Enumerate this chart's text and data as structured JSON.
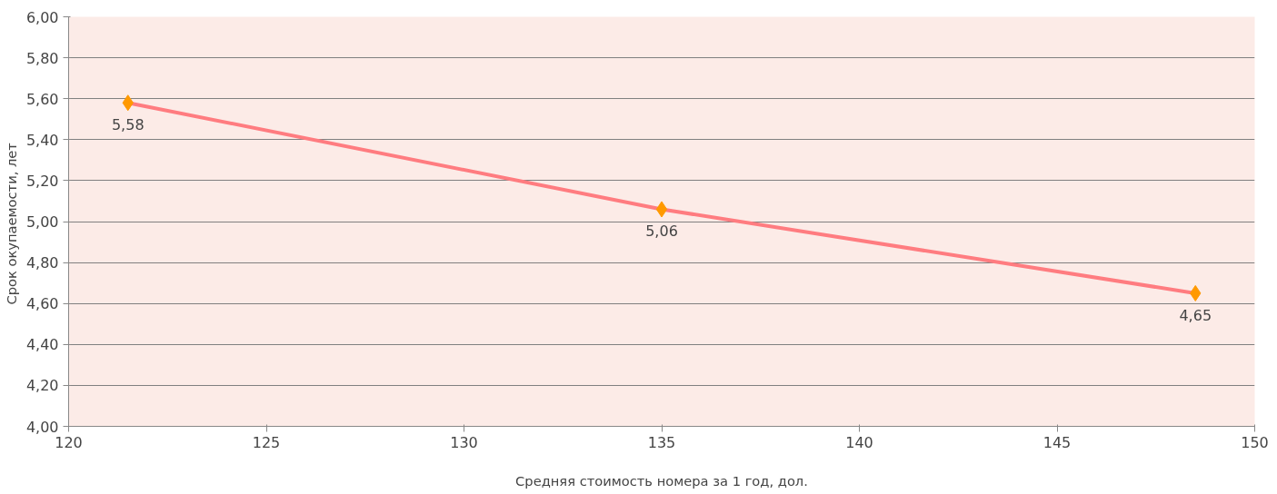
{
  "chart_data": {
    "type": "line",
    "xlabel": "Средняя стоимость номера за 1 год, дол.",
    "ylabel": "Срок  окупаемости, лет",
    "x": [
      121.5,
      135,
      148.5
    ],
    "series": [
      {
        "color": "#ff7c80",
        "colors": [
          "#ff9900",
          "#ff9900",
          "#ff9900"
        ],
        "values": [
          5.58,
          5.06,
          4.65
        ],
        "value_labels": [
          "5,58",
          "5,06",
          "4,65"
        ]
      }
    ],
    "xlim": [
      120,
      150
    ],
    "xticks": [
      120,
      125,
      130,
      135,
      140,
      145,
      150
    ],
    "ylim": [
      4.0,
      6.0
    ],
    "yticks": [
      {
        "value": 4.0,
        "label": "4,00"
      },
      {
        "value": 4.2,
        "label": "4,20"
      },
      {
        "value": 4.4,
        "label": "4,40"
      },
      {
        "value": 4.6,
        "label": "4,60"
      },
      {
        "value": 4.8,
        "label": "4,80"
      },
      {
        "value": 5.0,
        "label": "5,00"
      },
      {
        "value": 5.2,
        "label": "5,20"
      },
      {
        "value": 5.4,
        "label": "5,40"
      },
      {
        "value": 5.6,
        "label": "5,60"
      },
      {
        "value": 5.8,
        "label": "5,80"
      },
      {
        "value": 6.0,
        "label": "6,00"
      }
    ],
    "grid": "y",
    "marker": "diamond",
    "line_style": "solid"
  }
}
